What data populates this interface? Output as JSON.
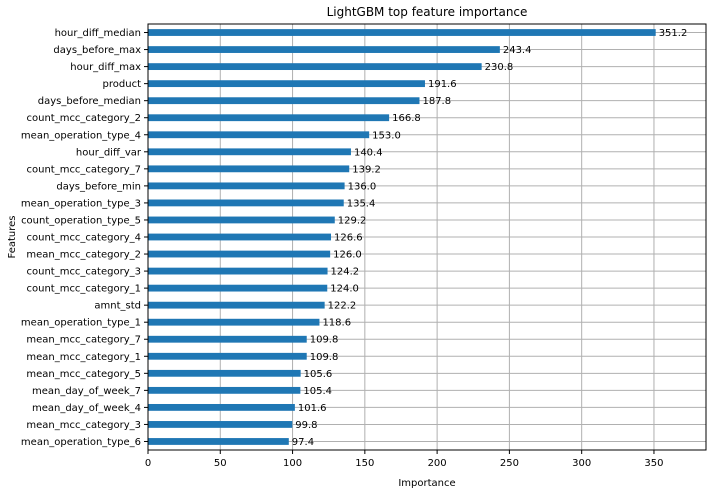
{
  "chart_data": {
    "type": "bar",
    "orientation": "horizontal",
    "title": "LightGBM top feature importance",
    "xlabel": "Importance",
    "ylabel": "Features",
    "xlim": [
      0,
      386
    ],
    "xticks": [
      "0",
      "50",
      "100",
      "150",
      "200",
      "250",
      "300",
      "350"
    ],
    "grid": true,
    "bar_color": "#1f77b4",
    "categories": [
      "hour_diff_median",
      "days_before_max",
      "hour_diff_max",
      "product",
      "days_before_median",
      "count_mcc_category_2",
      "mean_operation_type_4",
      "hour_diff_var",
      "count_mcc_category_7",
      "days_before_min",
      "mean_operation_type_3",
      "count_operation_type_5",
      "count_mcc_category_4",
      "mean_mcc_category_2",
      "count_mcc_category_3",
      "count_mcc_category_1",
      "amnt_std",
      "mean_operation_type_1",
      "mean_mcc_category_7",
      "mean_mcc_category_1",
      "mean_mcc_category_5",
      "mean_day_of_week_7",
      "mean_day_of_week_4",
      "mean_mcc_category_3",
      "mean_operation_type_6"
    ],
    "values": [
      351.2,
      243.4,
      230.8,
      191.6,
      187.8,
      166.8,
      153.0,
      140.4,
      139.2,
      136.0,
      135.4,
      129.2,
      126.6,
      126.0,
      124.2,
      124.0,
      122.2,
      118.6,
      109.8,
      109.8,
      105.6,
      105.4,
      101.6,
      99.8,
      97.4
    ],
    "value_labels": [
      "351.2",
      "243.4",
      "230.8",
      "191.6",
      "187.8",
      "166.8",
      "153.0",
      "140.4",
      "139.2",
      "136.0",
      "135.4",
      "129.2",
      "126.6",
      "126.0",
      "124.2",
      "124.0",
      "122.2",
      "118.6",
      "109.8",
      "109.8",
      "105.6",
      "105.4",
      "101.6",
      "99.8",
      "97.4"
    ]
  }
}
